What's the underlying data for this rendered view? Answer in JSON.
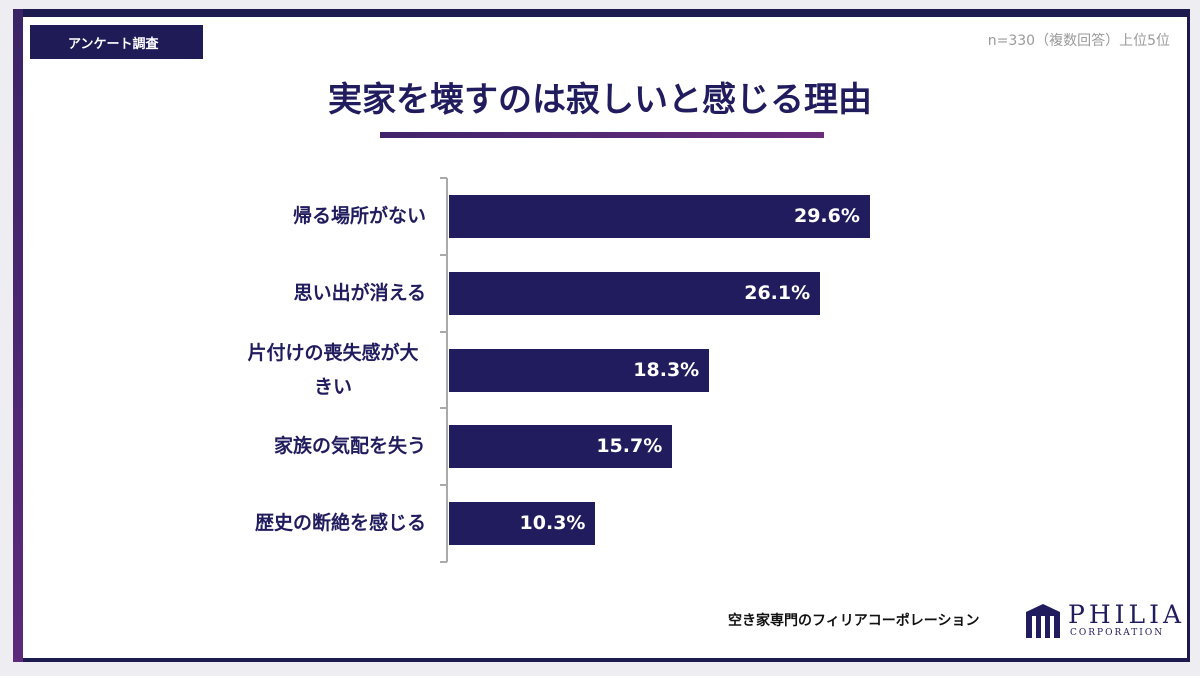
{
  "header": {
    "tag": "アンケート調査",
    "note": "n=330（複数回答）上位5位"
  },
  "chart_data": {
    "type": "bar",
    "orientation": "horizontal",
    "title": "実家を壊すのは寂しいと感じる理由",
    "categories": [
      "帰る場所がない",
      "思い出が消える",
      "片付けの喪失感が大きい",
      "家族の気配を失う",
      "歴史の断絶を感じる"
    ],
    "values": [
      29.6,
      26.1,
      18.3,
      15.7,
      10.3
    ],
    "value_labels": [
      "29.6%",
      "26.1%",
      "18.3%",
      "15.7%",
      "10.3%"
    ],
    "color": "#211c5e"
  },
  "footer": {
    "company": "空き家専門のフィリアコーポレーション",
    "logo": "PHILIA",
    "logo_sub": "CORPORATION"
  }
}
